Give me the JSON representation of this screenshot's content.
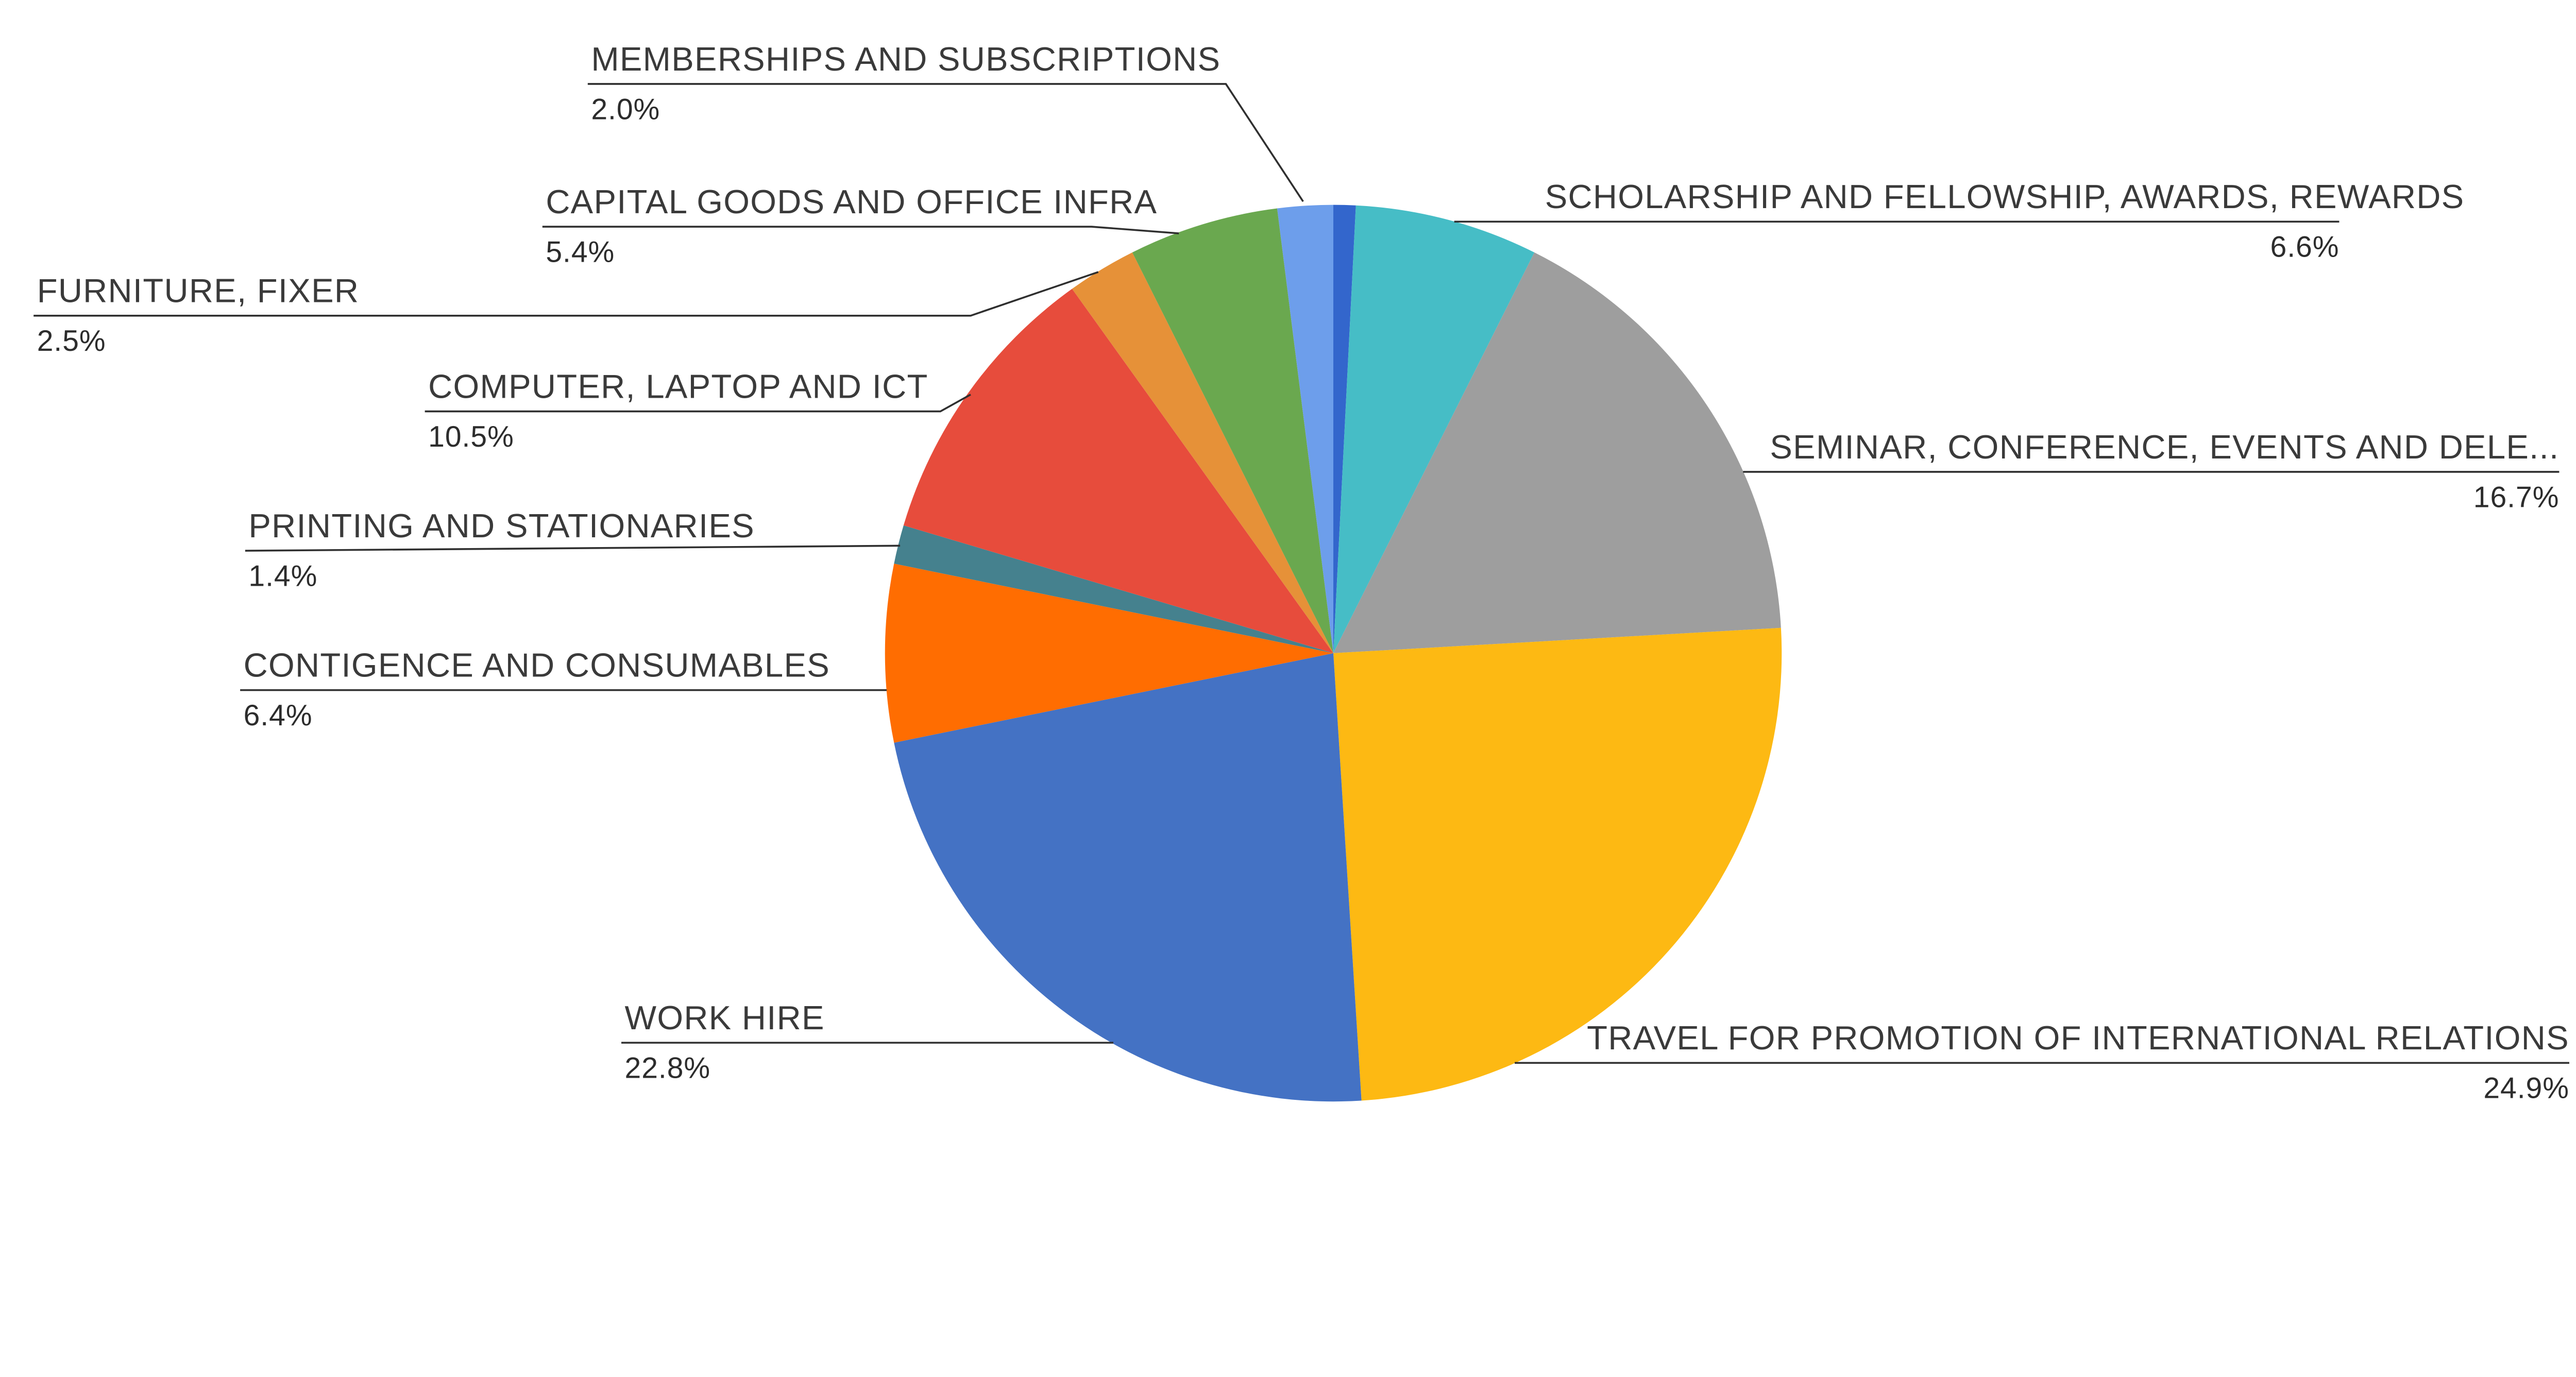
{
  "chart_data": {
    "type": "pie",
    "title": "",
    "legend_position": "none",
    "label_style": "outside-with-leader-lines",
    "start_angle_deg": 0,
    "direction": "clockwise",
    "background_color": "#ffffff",
    "text_color": "#3a3a3a",
    "leader_line_color": "#2f2f2f",
    "slices": [
      {
        "label": "",
        "value": 0.8,
        "display": "",
        "color": "#3366CC",
        "labeled": false
      },
      {
        "label": "SCHOLARSHIP AND FELLOWSHIP, AWARDS, REWARDS",
        "value": 6.6,
        "display": "6.6%",
        "color": "#46BDC6",
        "labeled": true
      },
      {
        "label": "SEMINAR, CONFERENCE, EVENTS AND DELE...",
        "value": 16.7,
        "display": "16.7%",
        "color": "#9E9E9E",
        "labeled": true
      },
      {
        "label": "TRAVEL FOR PROMOTION OF INTERNATIONAL RELATIONS",
        "value": 24.9,
        "display": "24.9%",
        "color": "#FDB913",
        "labeled": true
      },
      {
        "label": "WORK HIRE",
        "value": 22.8,
        "display": "22.8%",
        "color": "#4472C4",
        "labeled": true
      },
      {
        "label": "CONTIGENCE AND CONSUMABLES",
        "value": 6.4,
        "display": "6.4%",
        "color": "#FF6D01",
        "labeled": true
      },
      {
        "label": "PRINTING AND STATIONARIES",
        "value": 1.4,
        "display": "1.4%",
        "color": "#45818E",
        "labeled": true
      },
      {
        "label": "COMPUTER, LAPTOP AND ICT",
        "value": 10.5,
        "display": "10.5%",
        "color": "#E74C3C",
        "labeled": true
      },
      {
        "label": "FURNITURE, FIXER",
        "value": 2.5,
        "display": "2.5%",
        "color": "#E69138",
        "labeled": true
      },
      {
        "label": "CAPITAL GOODS AND OFFICE INFRA",
        "value": 5.4,
        "display": "5.4%",
        "color": "#6AA84F",
        "labeled": true
      },
      {
        "label": "MEMBERSHIPS AND SUBSCRIPTIONS",
        "value": 2.0,
        "display": "2.0%",
        "color": "#6D9EEB",
        "labeled": true
      }
    ]
  }
}
